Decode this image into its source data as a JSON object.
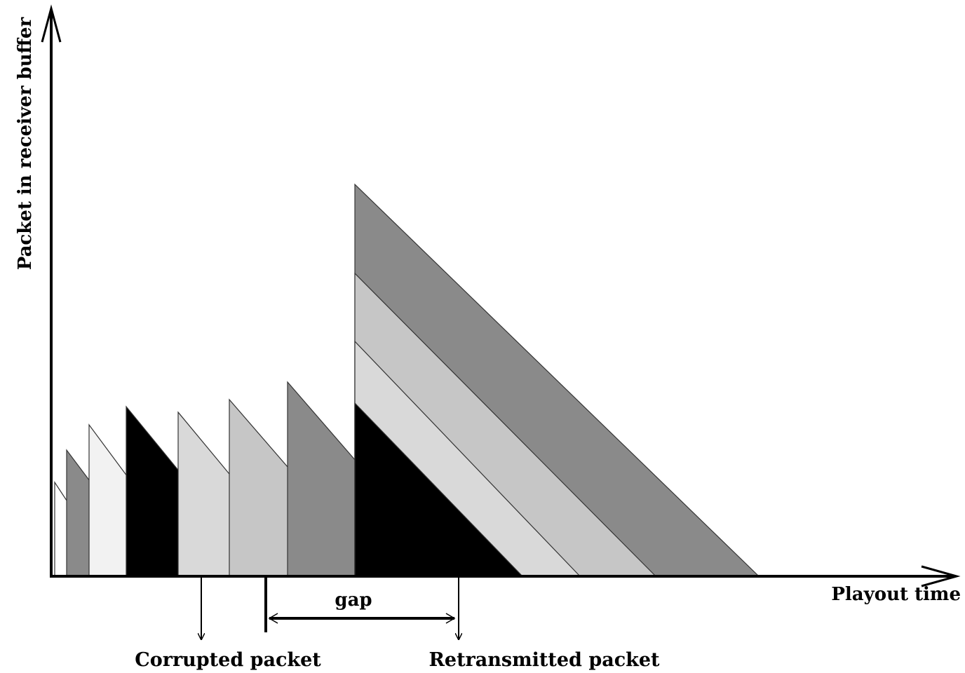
{
  "diagram": {
    "labels": {
      "y_axis": "Packet in receiver buffer",
      "x_axis": "Playout time",
      "gap": "gap",
      "corrupted": "Corrupted packet",
      "retransmitted": "Retransmitted packet"
    },
    "colors": {
      "dark_gray": "#8a8a8a",
      "very_light": "#f2f2f2",
      "black": "#000000",
      "light": "#d9d9d9",
      "mid_light": "#c6c6c6",
      "white": "#ffffff"
    }
  }
}
